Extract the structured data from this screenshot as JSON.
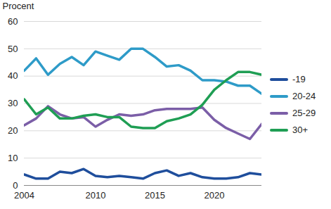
{
  "chart_data": {
    "type": "line",
    "y_label": "Procent",
    "x": [
      2004,
      2005,
      2006,
      2007,
      2008,
      2009,
      2010,
      2011,
      2012,
      2013,
      2014,
      2015,
      2016,
      2017,
      2018,
      2019,
      2020,
      2021,
      2022,
      2023,
      2024
    ],
    "series": [
      {
        "name": "-19",
        "color": "#1f4e9c",
        "values": [
          4,
          2.5,
          2.5,
          5,
          4.5,
          6,
          3.5,
          3,
          3.5,
          3,
          2.5,
          4.5,
          5.5,
          3.5,
          4.5,
          3,
          2.5,
          2.5,
          3,
          4.5,
          4
        ]
      },
      {
        "name": "20-24",
        "color": "#2e9bc8",
        "values": [
          42,
          46.5,
          40.5,
          44.5,
          47,
          44,
          49,
          47.5,
          46,
          50,
          50,
          47,
          43.5,
          44,
          42,
          38.5,
          38.5,
          38,
          36.5,
          36.5,
          33.5
        ]
      },
      {
        "name": "25-29",
        "color": "#7b5ea7",
        "values": [
          22,
          24.5,
          29,
          26,
          24.5,
          25,
          21.5,
          24,
          26,
          25.5,
          26,
          27.5,
          28,
          28,
          28,
          28.5,
          24,
          21,
          19,
          17,
          22.5
        ]
      },
      {
        "name": "30+",
        "color": "#1f9e54",
        "values": [
          31.5,
          26,
          28.5,
          24.5,
          24.5,
          25.5,
          26,
          25,
          25,
          21.5,
          21,
          21,
          23.5,
          24.5,
          26,
          29.5,
          35,
          38.5,
          41.5,
          41.5,
          40.5
        ]
      }
    ],
    "xlim": [
      2004,
      2024
    ],
    "xticks": [
      2004,
      2010,
      2015,
      2020
    ],
    "ylim": [
      0,
      60
    ],
    "yticks": [
      0,
      10,
      20,
      30,
      40,
      50,
      60
    ],
    "grid": true,
    "legend": "right"
  }
}
